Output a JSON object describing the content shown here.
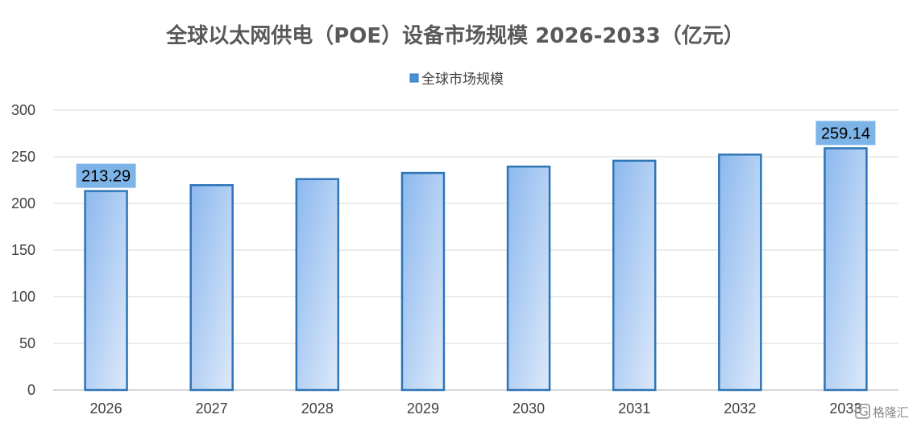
{
  "chart_data": {
    "type": "bar",
    "title": "全球以太网供电（POE）设备市场规模 2026-2033（亿元）",
    "legend": {
      "position": "top",
      "entries": [
        "全球市场规模"
      ]
    },
    "categories": [
      "2026",
      "2027",
      "2028",
      "2029",
      "2030",
      "2031",
      "2032",
      "2033"
    ],
    "series": [
      {
        "name": "全球市场规模",
        "values": [
          213.29,
          219.6,
          226.1,
          232.7,
          239.5,
          245.8,
          252.4,
          259.14
        ],
        "color": "#2E75B6"
      }
    ],
    "data_labels": [
      {
        "index": 0,
        "text": "213.29"
      },
      {
        "index": 7,
        "text": "259.14"
      }
    ],
    "ylim": [
      0,
      300
    ],
    "yticks": [
      0,
      50,
      100,
      150,
      200,
      250,
      300
    ],
    "xlabel": "",
    "ylabel": "",
    "grid": true
  },
  "colors": {
    "bar_outline": "#2E75B6",
    "bar_fill_start": "#8CB8EE",
    "bar_fill_end": "#DDE9FA",
    "label_box": "#7DB4E8",
    "legend_marker": "#4A90D9"
  },
  "watermark": {
    "text": "格隆汇",
    "icon": "logo-g-icon"
  }
}
